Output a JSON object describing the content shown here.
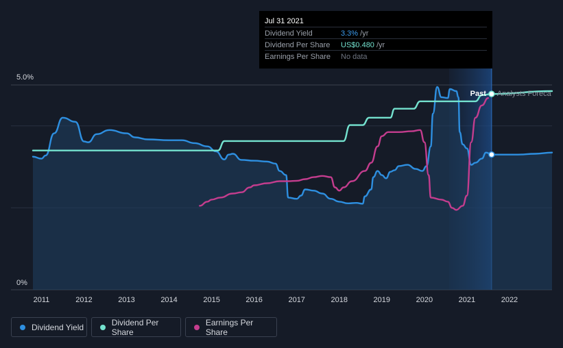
{
  "chart_data": {
    "type": "line",
    "title": "",
    "xlabel": "",
    "ylabel": "",
    "x_ticks": [
      "2011",
      "2012",
      "2013",
      "2014",
      "2015",
      "2016",
      "2017",
      "2018",
      "2019",
      "2020",
      "2021",
      "2022"
    ],
    "y_ticks": [
      "5.0%",
      "0%"
    ],
    "yield_range": [
      0,
      5.0
    ],
    "x_range": [
      2010.8,
      2023.0
    ],
    "grid": true,
    "forecast_start": 2020.58,
    "now_x": 2021.58,
    "past_label": "Past",
    "forecast_label": "Analysts Foreca",
    "series": [
      {
        "name": "Dividend Yield",
        "color": "#2e8fe0",
        "fill": true,
        "points": [
          [
            2010.8,
            3.25
          ],
          [
            2011.0,
            3.2
          ],
          [
            2011.1,
            3.28
          ],
          [
            2011.3,
            3.82
          ],
          [
            2011.5,
            4.2
          ],
          [
            2011.8,
            4.1
          ],
          [
            2012.0,
            3.62
          ],
          [
            2012.1,
            3.6
          ],
          [
            2012.3,
            3.8
          ],
          [
            2012.6,
            3.9
          ],
          [
            2013.0,
            3.82
          ],
          [
            2013.2,
            3.72
          ],
          [
            2013.5,
            3.67
          ],
          [
            2014.0,
            3.65
          ],
          [
            2014.3,
            3.65
          ],
          [
            2014.6,
            3.58
          ],
          [
            2014.9,
            3.5
          ],
          [
            2015.1,
            3.38
          ],
          [
            2015.3,
            3.18
          ],
          [
            2015.4,
            3.3
          ],
          [
            2015.5,
            3.32
          ],
          [
            2015.7,
            3.17
          ],
          [
            2016.0,
            3.15
          ],
          [
            2016.3,
            3.13
          ],
          [
            2016.5,
            3.08
          ],
          [
            2016.6,
            2.9
          ],
          [
            2016.75,
            2.8
          ],
          [
            2016.8,
            2.25
          ],
          [
            2017.0,
            2.22
          ],
          [
            2017.1,
            2.3
          ],
          [
            2017.2,
            2.45
          ],
          [
            2017.4,
            2.42
          ],
          [
            2017.6,
            2.35
          ],
          [
            2017.8,
            2.22
          ],
          [
            2018.0,
            2.15
          ],
          [
            2018.2,
            2.11
          ],
          [
            2018.4,
            2.12
          ],
          [
            2018.55,
            2.1
          ],
          [
            2018.6,
            2.28
          ],
          [
            2018.75,
            2.45
          ],
          [
            2018.8,
            2.75
          ],
          [
            2018.9,
            2.9
          ],
          [
            2019.0,
            2.8
          ],
          [
            2019.1,
            2.72
          ],
          [
            2019.2,
            2.88
          ],
          [
            2019.3,
            2.92
          ],
          [
            2019.4,
            3.02
          ],
          [
            2019.6,
            3.05
          ],
          [
            2019.8,
            2.95
          ],
          [
            2019.95,
            2.9
          ],
          [
            2020.05,
            3.02
          ],
          [
            2020.15,
            3.5
          ],
          [
            2020.2,
            4.3
          ],
          [
            2020.3,
            4.95
          ],
          [
            2020.4,
            4.7
          ],
          [
            2020.55,
            4.68
          ],
          [
            2020.6,
            4.9
          ],
          [
            2020.75,
            4.85
          ],
          [
            2020.8,
            4.7
          ],
          [
            2020.83,
            3.85
          ],
          [
            2020.9,
            3.55
          ],
          [
            2021.0,
            3.45
          ],
          [
            2021.1,
            3.05
          ],
          [
            2021.2,
            3.1
          ],
          [
            2021.35,
            3.2
          ],
          [
            2021.45,
            3.35
          ],
          [
            2021.58,
            3.3
          ],
          [
            2021.8,
            3.3
          ],
          [
            2022.2,
            3.3
          ],
          [
            2022.6,
            3.32
          ],
          [
            2023.0,
            3.35
          ]
        ]
      },
      {
        "name": "Dividend Per Share",
        "color": "#74e2cf",
        "fill": false,
        "points": [
          [
            2010.8,
            3.4
          ],
          [
            2015.15,
            3.4
          ],
          [
            2015.3,
            3.63
          ],
          [
            2018.1,
            3.63
          ],
          [
            2018.25,
            4.02
          ],
          [
            2018.55,
            4.02
          ],
          [
            2018.7,
            4.2
          ],
          [
            2019.2,
            4.2
          ],
          [
            2019.3,
            4.42
          ],
          [
            2019.75,
            4.42
          ],
          [
            2019.9,
            4.6
          ],
          [
            2021.2,
            4.6
          ],
          [
            2021.35,
            4.75
          ],
          [
            2021.58,
            4.78
          ],
          [
            2023.0,
            4.85
          ]
        ]
      },
      {
        "name": "Earnings Per Share",
        "color": "#c43d8e",
        "fill": false,
        "points": [
          [
            2014.72,
            2.05
          ],
          [
            2014.9,
            2.15
          ],
          [
            2015.0,
            2.2
          ],
          [
            2015.2,
            2.25
          ],
          [
            2015.5,
            2.35
          ],
          [
            2015.7,
            2.38
          ],
          [
            2015.9,
            2.5
          ],
          [
            2016.0,
            2.55
          ],
          [
            2016.3,
            2.6
          ],
          [
            2016.6,
            2.65
          ],
          [
            2016.8,
            2.65
          ],
          [
            2017.0,
            2.66
          ],
          [
            2017.2,
            2.7
          ],
          [
            2017.4,
            2.75
          ],
          [
            2017.6,
            2.78
          ],
          [
            2017.8,
            2.75
          ],
          [
            2017.9,
            2.5
          ],
          [
            2018.0,
            2.42
          ],
          [
            2018.1,
            2.5
          ],
          [
            2018.3,
            2.65
          ],
          [
            2018.6,
            2.9
          ],
          [
            2018.75,
            3.1
          ],
          [
            2018.9,
            3.5
          ],
          [
            2019.0,
            3.75
          ],
          [
            2019.15,
            3.85
          ],
          [
            2019.4,
            3.85
          ],
          [
            2019.7,
            3.87
          ],
          [
            2019.9,
            3.9
          ],
          [
            2020.0,
            3.6
          ],
          [
            2020.1,
            2.8
          ],
          [
            2020.15,
            2.25
          ],
          [
            2020.4,
            2.2
          ],
          [
            2020.55,
            2.15
          ],
          [
            2020.65,
            2.0
          ],
          [
            2020.75,
            1.95
          ],
          [
            2020.9,
            2.05
          ],
          [
            2021.0,
            2.3
          ],
          [
            2021.1,
            3.6
          ],
          [
            2021.2,
            4.2
          ],
          [
            2021.35,
            4.5
          ],
          [
            2021.5,
            4.68
          ]
        ]
      }
    ],
    "legend": {
      "placement": "bottom-left",
      "items": [
        {
          "label": "Dividend Yield",
          "color": "#2e8fe0"
        },
        {
          "label": "Dividend Per Share",
          "color": "#74e2cf"
        },
        {
          "label": "Earnings Per Share",
          "color": "#c43d8e"
        }
      ]
    }
  },
  "tooltip": {
    "date": "Jul 31 2021",
    "rows": [
      {
        "label": "Dividend Yield",
        "value": "3.3%",
        "unit": " /yr",
        "color": "#3b9cf0"
      },
      {
        "label": "Dividend Per Share",
        "value": "US$0.480",
        "unit": " /yr",
        "color": "#74e2cf"
      },
      {
        "label": "Earnings Per Share",
        "value": "No data",
        "unit": "",
        "color": "#6e7480"
      }
    ]
  }
}
